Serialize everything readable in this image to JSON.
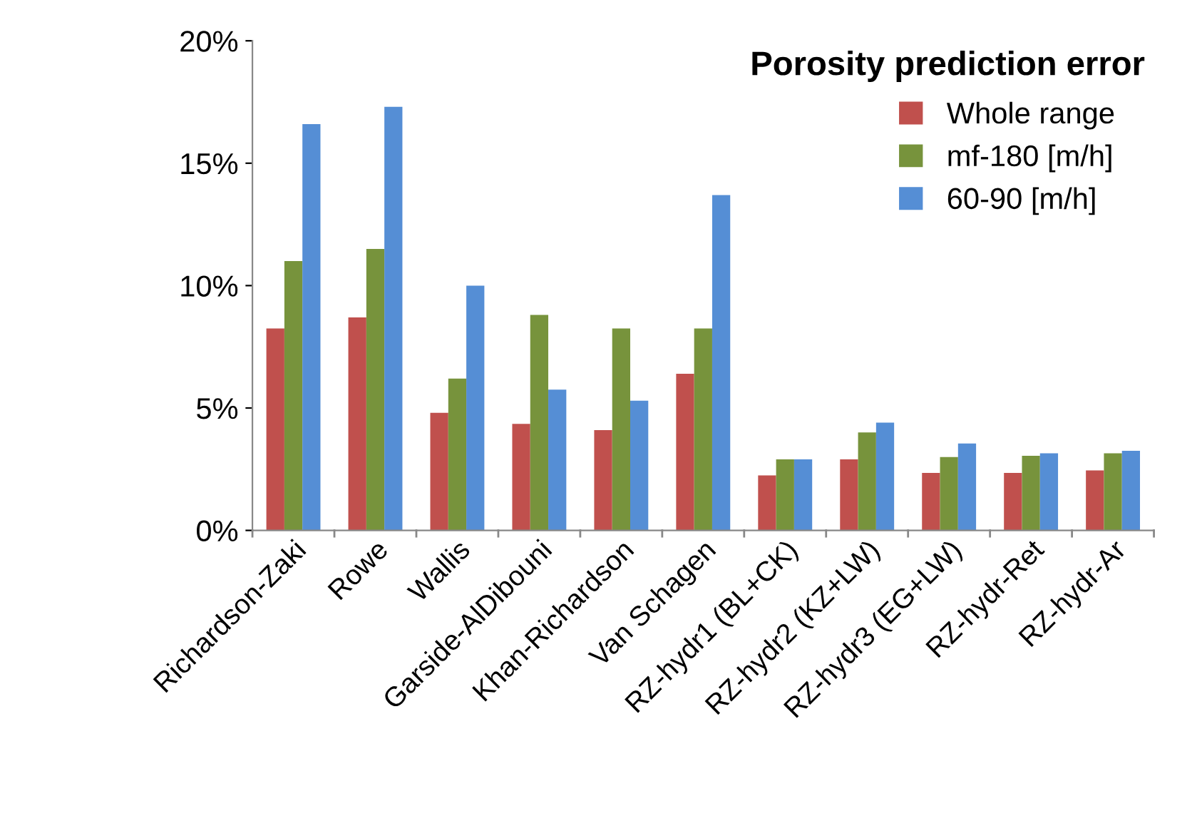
{
  "chart_data": {
    "type": "bar",
    "title": "Porosity prediction error",
    "categories": [
      "Richardson-Zaki",
      "Rowe",
      "Wallis",
      "Garside-AlDibouni",
      "Khan-Richardson",
      "Van Schagen",
      "RZ-hydr1 (BL+CK)",
      "RZ-hydr2 (KZ+LW)",
      "RZ-hydr3 (EG+LW)",
      "RZ-hydr-Ret",
      "RZ-hydr-Ar"
    ],
    "series": [
      {
        "name": "Whole range",
        "color": "#c0504d",
        "values": [
          8.25,
          8.7,
          4.8,
          4.35,
          4.1,
          6.4,
          2.25,
          2.9,
          2.35,
          2.35,
          2.45
        ]
      },
      {
        "name": "mf-180 [m/h]",
        "color": "#77933c",
        "values": [
          11.0,
          11.5,
          6.2,
          8.8,
          8.25,
          8.25,
          2.9,
          4.0,
          3.0,
          3.05,
          3.15
        ]
      },
      {
        "name": "60-90 [m/h]",
        "color": "#558ed5",
        "values": [
          16.6,
          17.3,
          10.0,
          5.75,
          5.3,
          13.7,
          2.9,
          4.4,
          3.55,
          3.15,
          3.25
        ]
      }
    ],
    "ylim": [
      0,
      20
    ],
    "yticks": [
      {
        "value": 0,
        "label": "0%"
      },
      {
        "value": 5,
        "label": "5%"
      },
      {
        "value": 10,
        "label": "10%"
      },
      {
        "value": 15,
        "label": "15%"
      },
      {
        "value": 20,
        "label": "20%"
      }
    ],
    "grid": false,
    "legend": "top right"
  }
}
